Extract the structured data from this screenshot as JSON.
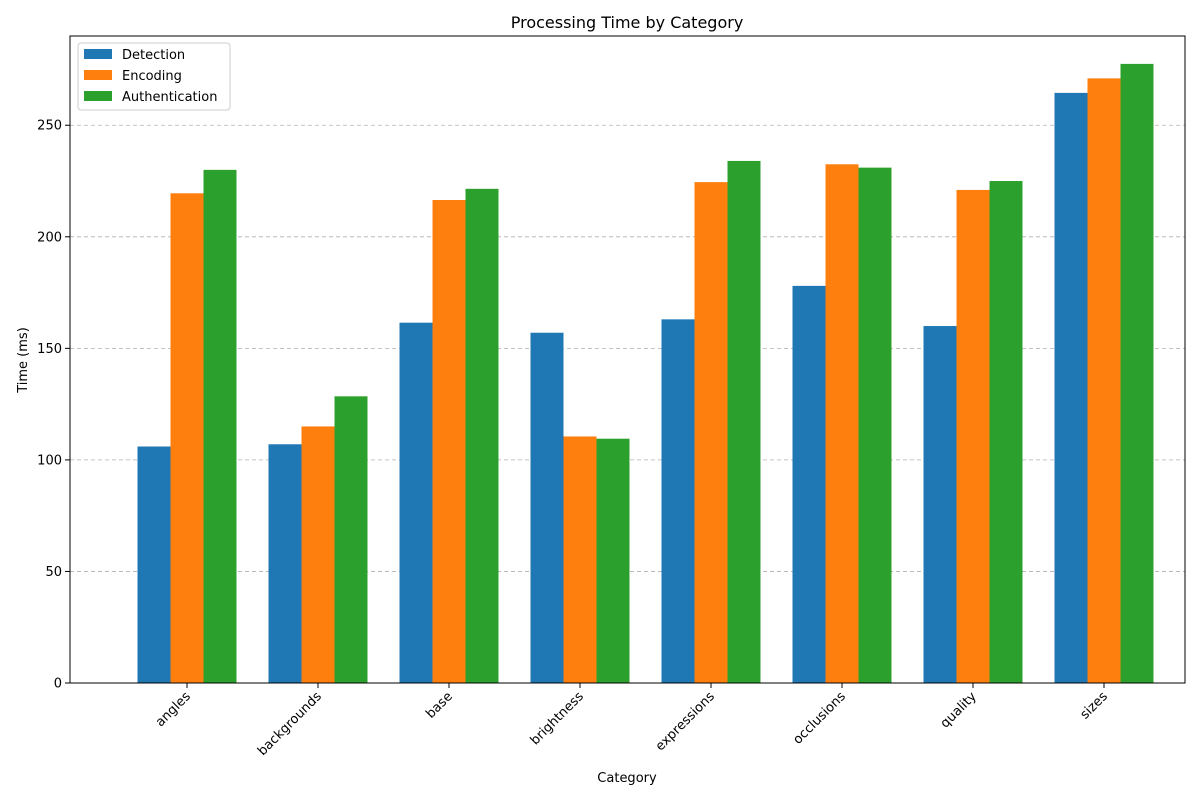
{
  "chart_data": {
    "type": "bar",
    "title": "Processing Time by Category",
    "xlabel": "Category",
    "ylabel": "Time (ms)",
    "ylim": [
      0,
      290
    ],
    "yticks": [
      0,
      50,
      100,
      150,
      200,
      250
    ],
    "grid": "y-dashed",
    "legend_position": "top-left",
    "categories": [
      "angles",
      "backgrounds",
      "base",
      "brightness",
      "expressions",
      "occlusions",
      "quality",
      "sizes"
    ],
    "series": [
      {
        "name": "Detection",
        "color": "#1f77b4",
        "values": [
          106,
          107,
          161.5,
          157,
          163,
          178,
          160,
          264.5
        ]
      },
      {
        "name": "Encoding",
        "color": "#ff7f0e",
        "values": [
          219.5,
          115,
          216.5,
          110.5,
          224.5,
          232.5,
          221,
          271
        ]
      },
      {
        "name": "Authentication",
        "color": "#2ca02c",
        "values": [
          230,
          128.5,
          221.5,
          109.5,
          234,
          231,
          225,
          277.5
        ]
      }
    ]
  }
}
